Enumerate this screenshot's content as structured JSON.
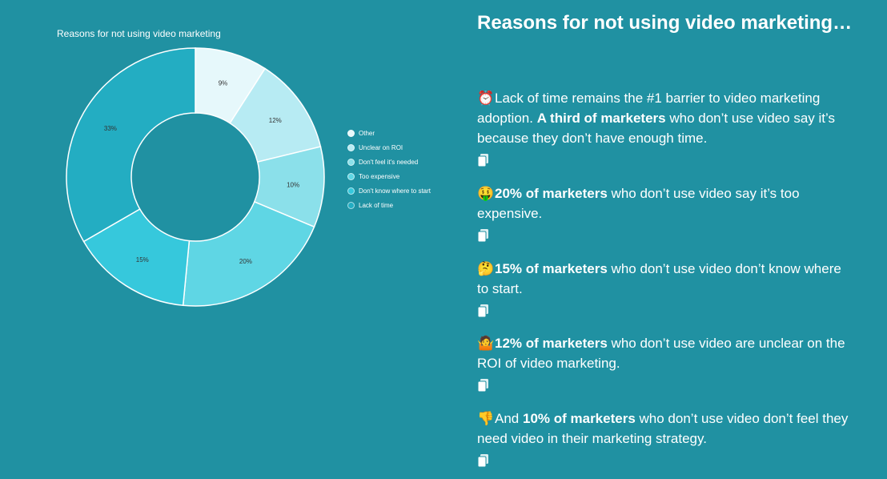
{
  "chart_data": {
    "type": "pie",
    "donut": true,
    "title": "Reasons for not using video marketing",
    "categories": [
      "Other",
      "Unclear on ROI",
      "Don't feel it's needed",
      "Too expensive",
      "Don't know where to start",
      "Lack of time"
    ],
    "values": [
      9,
      12,
      10,
      20,
      15,
      33
    ],
    "labels": [
      "9%",
      "12%",
      "10%",
      "20%",
      "15%",
      "33%"
    ],
    "colors": [
      "#e6f8fb",
      "#b7ebf3",
      "#8be0ea",
      "#5fd6e4",
      "#36c8dc",
      "#23adc2"
    ],
    "legend_position": "right"
  },
  "main_title": "Reasons for not using video marketing…",
  "facts": [
    {
      "emoji": "⏰",
      "before": "Lack of time remains the #1 barrier to video marketing adoption. ",
      "bold": "A third of marketers",
      "after": " who don’t use video say it’s because they don’t have enough time."
    },
    {
      "emoji": "🤑",
      "before": "",
      "bold": "20% of marketers",
      "after": " who don’t use video say it’s too expensive."
    },
    {
      "emoji": "🤔",
      "before": "",
      "bold": "15% of marketers",
      "after": " who don’t use video don’t know where to start."
    },
    {
      "emoji": "🤷",
      "before": "",
      "bold": "12% of marketers",
      "after": " who don’t use video are unclear on the ROI of video marketing."
    },
    {
      "emoji": "👎",
      "before": "And ",
      "bold": "10% of marketers",
      "after": " who don’t use video don’t feel they need video in their marketing strategy."
    }
  ],
  "icons": {
    "copy": "copy-icon"
  }
}
